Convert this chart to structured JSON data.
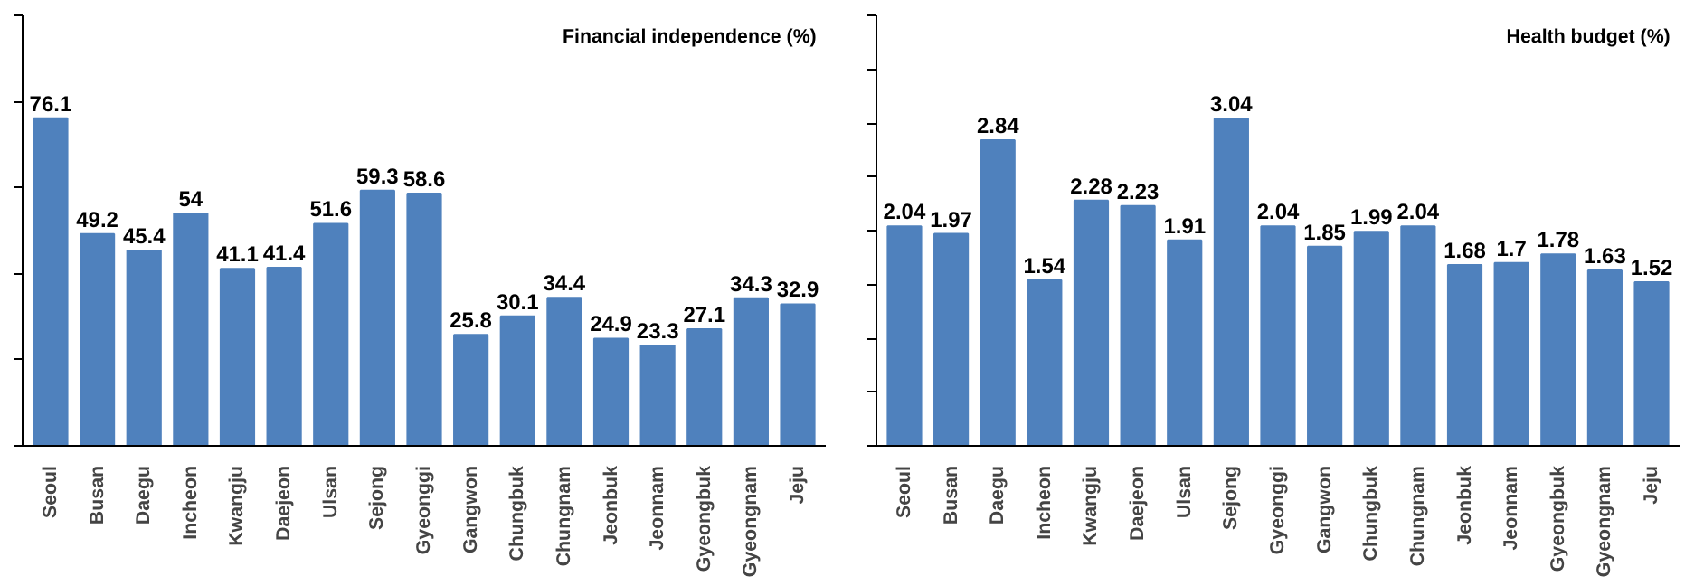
{
  "chart_data": [
    {
      "type": "bar",
      "title": "Financial independence (%)",
      "categories": [
        "Seoul",
        "Busan",
        "Daegu",
        "Incheon",
        "Kwangju",
        "Daejeon",
        "Ulsan",
        "Sejong",
        "Gyeonggi",
        "Gangwon",
        "Chungbuk",
        "Chungnam",
        "Jeonbuk",
        "Jeonnam",
        "Gyeongbuk",
        "Gyeongnam",
        "Jeju"
      ],
      "values": [
        76.1,
        49.2,
        45.4,
        54,
        41.1,
        41.4,
        51.6,
        59.3,
        58.6,
        25.8,
        30.1,
        34.4,
        24.9,
        23.3,
        27.1,
        34.3,
        32.9
      ],
      "color": "#4f81bd",
      "data_labels": true,
      "ylim": [
        0,
        100
      ],
      "yticks": [
        {
          "value": 0,
          "label": null
        },
        {
          "value": 20,
          "label": null
        },
        {
          "value": 40,
          "label": null
        },
        {
          "value": 60,
          "label": null
        },
        {
          "value": 80,
          "label": null
        },
        {
          "value": 100,
          "label": null
        }
      ],
      "tick_labels": "x",
      "grid": false
    },
    {
      "type": "bar",
      "title": "Health budget (%)",
      "categories": [
        "Seoul",
        "Busan",
        "Daegu",
        "Incheon",
        "Kwangju",
        "Daejeon",
        "Ulsan",
        "Sejong",
        "Gyeonggi",
        "Gangwon",
        "Chungbuk",
        "Chungnam",
        "Jeonbuk",
        "Jeonnam",
        "Gyeongbuk",
        "Gyeongnam",
        "Jeju"
      ],
      "values": [
        2.04,
        1.97,
        2.84,
        1.54,
        2.28,
        2.23,
        1.91,
        3.04,
        2.04,
        1.85,
        1.99,
        2.04,
        1.68,
        1.7,
        1.78,
        1.63,
        1.52
      ],
      "color": "#4f81bd",
      "data_labels": true,
      "ylim": [
        0,
        4
      ],
      "yticks": [
        {
          "value": 0,
          "label": null
        },
        {
          "value": 0.5,
          "label": null
        },
        {
          "value": 1,
          "label": null
        },
        {
          "value": 1.5,
          "label": null
        },
        {
          "value": 2,
          "label": null
        },
        {
          "value": 2.5,
          "label": null
        },
        {
          "value": 3,
          "label": null
        },
        {
          "value": 3.5,
          "label": null
        },
        {
          "value": 4,
          "label": null
        }
      ],
      "tick_labels": "x",
      "grid": false
    }
  ]
}
